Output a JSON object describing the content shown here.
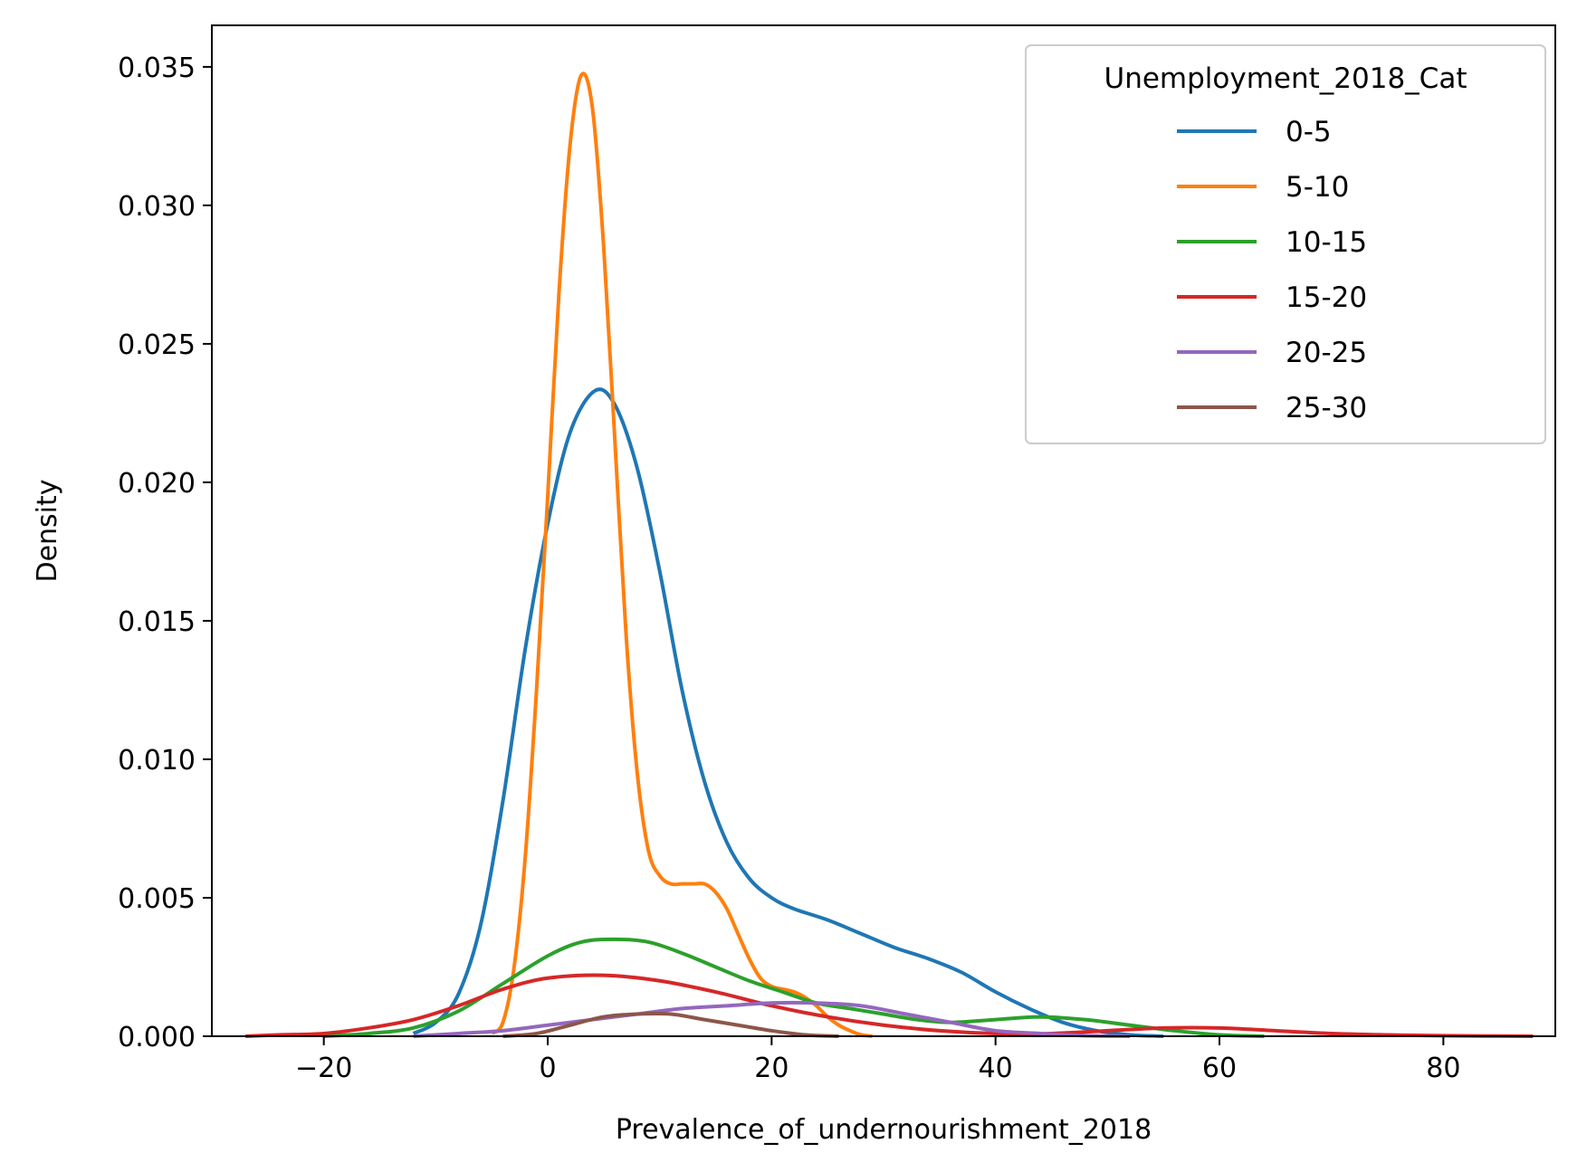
{
  "chart_data": {
    "type": "line",
    "xlabel": "Prevalence_of_undernourishment_2018",
    "ylabel": "Density",
    "xlim": [
      -30,
      90
    ],
    "ylim": [
      0,
      0.0365
    ],
    "x_ticks": [
      -20,
      0,
      20,
      40,
      60,
      80
    ],
    "x_tick_labels": [
      "−20",
      "0",
      "20",
      "40",
      "60",
      "80"
    ],
    "y_ticks": [
      0,
      0.005,
      0.01,
      0.015,
      0.02,
      0.025,
      0.03,
      0.035
    ],
    "y_tick_labels": [
      "0.000",
      "0.005",
      "0.010",
      "0.015",
      "0.020",
      "0.025",
      "0.030",
      "0.035"
    ],
    "grid": false,
    "legend": {
      "title": "Unemployment_2018_Cat",
      "placement": "top-right"
    },
    "series": [
      {
        "name": "0-5",
        "color": "#1f77b4",
        "points": [
          [
            -12,
            0.0001
          ],
          [
            -10,
            0.0005
          ],
          [
            -8,
            0.0015
          ],
          [
            -6,
            0.004
          ],
          [
            -4,
            0.0085
          ],
          [
            -2,
            0.014
          ],
          [
            0,
            0.0185
          ],
          [
            2,
            0.0218
          ],
          [
            4.2,
            0.0233
          ],
          [
            6,
            0.0228
          ],
          [
            8,
            0.0205
          ],
          [
            10,
            0.0168
          ],
          [
            12,
            0.0125
          ],
          [
            14,
            0.0092
          ],
          [
            16,
            0.007
          ],
          [
            18,
            0.0057
          ],
          [
            20,
            0.005
          ],
          [
            22,
            0.0046
          ],
          [
            25,
            0.0042
          ],
          [
            28,
            0.0037
          ],
          [
            31,
            0.0032
          ],
          [
            34,
            0.0028
          ],
          [
            37,
            0.0023
          ],
          [
            40,
            0.0016
          ],
          [
            43,
            0.001
          ],
          [
            46,
            0.0005
          ],
          [
            49,
            0.0002
          ],
          [
            52,
            5e-05
          ],
          [
            55,
            0.0
          ]
        ]
      },
      {
        "name": "5-10",
        "color": "#ff7f0e",
        "points": [
          [
            -5,
            0.0001
          ],
          [
            -4,
            0.0005
          ],
          [
            -3,
            0.0025
          ],
          [
            -2,
            0.0065
          ],
          [
            -1,
            0.0125
          ],
          [
            0,
            0.0195
          ],
          [
            1,
            0.0268
          ],
          [
            2,
            0.0322
          ],
          [
            3,
            0.0347
          ],
          [
            4,
            0.0335
          ],
          [
            5,
            0.0285
          ],
          [
            6,
            0.0215
          ],
          [
            7,
            0.0145
          ],
          [
            8,
            0.0095
          ],
          [
            9,
            0.0067
          ],
          [
            10,
            0.0058
          ],
          [
            11,
            0.0055
          ],
          [
            12,
            0.0055
          ],
          [
            13,
            0.0055
          ],
          [
            14,
            0.0055
          ],
          [
            15,
            0.0052
          ],
          [
            16,
            0.0046
          ],
          [
            17,
            0.0037
          ],
          [
            18,
            0.0028
          ],
          [
            19,
            0.0021
          ],
          [
            20,
            0.0018
          ],
          [
            21,
            0.0017
          ],
          [
            22,
            0.0016
          ],
          [
            23,
            0.0014
          ],
          [
            24,
            0.0011
          ],
          [
            25,
            0.0007
          ],
          [
            26,
            0.0004
          ],
          [
            27,
            0.0002
          ],
          [
            28,
            5e-05
          ],
          [
            29,
            0.0
          ]
        ]
      },
      {
        "name": "10-15",
        "color": "#2ca02c",
        "points": [
          [
            -20,
            0.0
          ],
          [
            -16,
            0.0001
          ],
          [
            -12,
            0.0003
          ],
          [
            -8,
            0.0009
          ],
          [
            -4,
            0.0019
          ],
          [
            0,
            0.0029
          ],
          [
            3,
            0.0034
          ],
          [
            6,
            0.0035
          ],
          [
            9,
            0.0034
          ],
          [
            12,
            0.003
          ],
          [
            15,
            0.0025
          ],
          [
            18,
            0.002
          ],
          [
            21,
            0.0016
          ],
          [
            24,
            0.0012
          ],
          [
            27,
            0.001
          ],
          [
            30,
            0.0008
          ],
          [
            33,
            0.0006
          ],
          [
            36,
            0.0005
          ],
          [
            40,
            0.0006
          ],
          [
            44,
            0.0007
          ],
          [
            48,
            0.0006
          ],
          [
            52,
            0.0004
          ],
          [
            56,
            0.0002
          ],
          [
            60,
            5e-05
          ],
          [
            64,
            0.0
          ]
        ]
      },
      {
        "name": "15-20",
        "color": "#d62728",
        "points": [
          [
            -27,
            0.0
          ],
          [
            -24,
            5e-05
          ],
          [
            -20,
            0.0001
          ],
          [
            -16,
            0.0003
          ],
          [
            -12,
            0.0006
          ],
          [
            -8,
            0.0011
          ],
          [
            -4,
            0.0017
          ],
          [
            0,
            0.0021
          ],
          [
            5,
            0.0022
          ],
          [
            10,
            0.002
          ],
          [
            15,
            0.0016
          ],
          [
            20,
            0.0011
          ],
          [
            25,
            0.0007
          ],
          [
            30,
            0.0004
          ],
          [
            35,
            0.0002
          ],
          [
            40,
            0.0001
          ],
          [
            45,
            0.0001
          ],
          [
            50,
            0.0002
          ],
          [
            55,
            0.0003
          ],
          [
            60,
            0.0003
          ],
          [
            65,
            0.0002
          ],
          [
            70,
            0.0001
          ],
          [
            75,
            5e-05
          ],
          [
            80,
            2e-05
          ],
          [
            88,
            0.0
          ]
        ]
      },
      {
        "name": "20-25",
        "color": "#9467bd",
        "points": [
          [
            -12,
            0.0
          ],
          [
            -8,
            0.0001
          ],
          [
            -4,
            0.0002
          ],
          [
            0,
            0.0004
          ],
          [
            4,
            0.0006
          ],
          [
            8,
            0.0008
          ],
          [
            12,
            0.001
          ],
          [
            16,
            0.0011
          ],
          [
            20,
            0.0012
          ],
          [
            24,
            0.0012
          ],
          [
            28,
            0.0011
          ],
          [
            32,
            0.0008
          ],
          [
            36,
            0.0005
          ],
          [
            40,
            0.0002
          ],
          [
            44,
            0.0001
          ],
          [
            48,
            2e-05
          ],
          [
            52,
            0.0
          ]
        ]
      },
      {
        "name": "25-30",
        "color": "#8c564b",
        "points": [
          [
            -4,
            0.0
          ],
          [
            -1,
            0.0001
          ],
          [
            2,
            0.0004
          ],
          [
            5,
            0.0007
          ],
          [
            8,
            0.0008
          ],
          [
            11,
            0.0008
          ],
          [
            14,
            0.0006
          ],
          [
            17,
            0.0004
          ],
          [
            20,
            0.0002
          ],
          [
            23,
            5e-05
          ],
          [
            26,
            0.0
          ]
        ]
      }
    ]
  }
}
